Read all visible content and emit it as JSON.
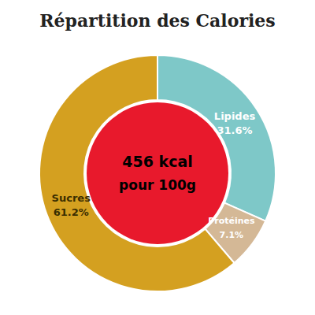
{
  "chart_data": {
    "type": "pie",
    "title": "Répartition des Calories",
    "annotations": [
      "456 kcal",
      "pour 100g"
    ],
    "categories": [
      "Lipides",
      "Protéines",
      "Sucres"
    ],
    "values": [
      31.6,
      7.1,
      61.2
    ],
    "value_labels": [
      "31.6%",
      "7.1%",
      "61.2%"
    ],
    "colors": [
      "#7ec8c8",
      "#d4b896",
      "#d4a020"
    ],
    "data_labels": true
  }
}
